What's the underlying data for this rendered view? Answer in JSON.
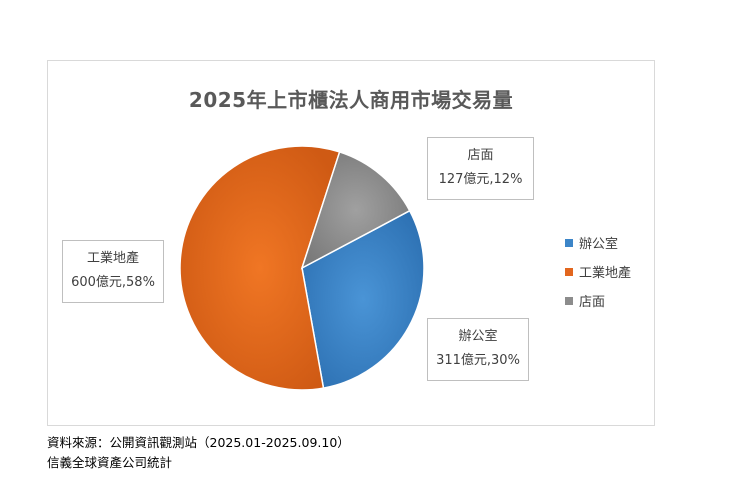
{
  "chart_data": {
    "type": "pie",
    "title": "2025年上市櫃法人商用市場交易量",
    "slices": [
      {
        "name": "辦公室",
        "value": 311,
        "percent": 30,
        "label_line1": "辦公室",
        "label_line2": "311億元,30%",
        "color": "#3c85c8"
      },
      {
        "name": "工業地產",
        "value": 600,
        "percent": 58,
        "label_line1": "工業地產",
        "label_line2": "600億元,58%",
        "color": "#e2661e"
      },
      {
        "name": "店面",
        "value": 127,
        "percent": 12,
        "label_line1": "店面",
        "label_line2": "127億元,12%",
        "color": "#8c8c8c"
      }
    ],
    "legend": [
      "辦公室",
      "工業地產",
      "店面"
    ],
    "legend_position": "right"
  },
  "source": {
    "line1": "資料來源：公開資訊觀測站（2025.01-2025.09.10）",
    "line2": "信義全球資產公司統計"
  }
}
